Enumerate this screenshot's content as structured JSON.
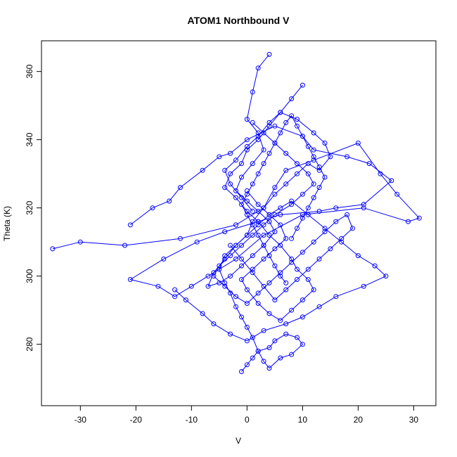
{
  "chart_data": {
    "type": "line",
    "title": "ATOM1 Northbound V",
    "xlabel": "V",
    "ylabel": "Theta (K)",
    "xlim": [
      -37,
      34
    ],
    "ylim": [
      262,
      369
    ],
    "x_ticks": [
      -30,
      -20,
      -10,
      0,
      10,
      20,
      30
    ],
    "y_ticks": [
      280,
      300,
      320,
      340,
      360
    ],
    "grid": false,
    "legend": "none",
    "color": "#0000ff",
    "marker": "open-circle",
    "series": [
      {
        "x": [
          -35,
          -30,
          -22,
          -12,
          -2,
          3,
          5,
          7,
          12,
          20,
          24,
          27,
          31,
          29,
          21,
          10,
          3,
          -2,
          -7,
          -10,
          -13,
          -16,
          -21,
          -15,
          -9,
          -4,
          2,
          6,
          13,
          16,
          21,
          26,
          22,
          18,
          12,
          10,
          5,
          0,
          -3,
          -5,
          -8,
          -12,
          -14,
          -17,
          -21
        ],
        "y": [
          308,
          310,
          309,
          311,
          315,
          320,
          326,
          331,
          334,
          339,
          330,
          324,
          317,
          316,
          320,
          318,
          312,
          305,
          300,
          297,
          294,
          297,
          299,
          305,
          310,
          313,
          316,
          318,
          319,
          320,
          321,
          328,
          333,
          335,
          337,
          341,
          344,
          340,
          336,
          335,
          331,
          326,
          322,
          320,
          315
        ]
      },
      {
        "x": [
          -1,
          0,
          1,
          2,
          4,
          5,
          7,
          9,
          10,
          8,
          6,
          4,
          3,
          2,
          1,
          0,
          -1,
          -2,
          -3,
          -4,
          -5,
          -4,
          -2,
          0,
          2,
          4,
          6,
          8,
          11,
          14,
          17,
          20,
          23,
          25,
          21,
          16,
          13,
          10,
          7,
          3,
          0,
          -3,
          -6,
          -8,
          -11,
          -13
        ],
        "y": [
          272,
          274,
          276,
          278,
          279,
          281,
          283,
          282,
          280,
          277,
          276,
          273,
          275,
          278,
          282,
          285,
          288,
          291,
          295,
          298,
          302,
          306,
          309,
          312,
          315,
          318,
          320,
          322,
          318,
          314,
          310,
          306,
          303,
          300,
          297,
          294,
          291,
          288,
          286,
          284,
          281,
          283,
          286,
          289,
          293,
          296
        ]
      },
      {
        "x": [
          4,
          2,
          1,
          0,
          2,
          3,
          1,
          -1,
          -2,
          0,
          2,
          4,
          5,
          3,
          1,
          -1,
          -3,
          -5,
          -7,
          -6,
          -4,
          -2,
          0,
          1,
          3,
          5,
          7,
          9,
          11,
          13,
          15,
          14,
          12,
          9,
          6,
          4,
          2,
          0,
          -2,
          -4,
          -3,
          -1,
          1
        ],
        "y": [
          365,
          361,
          354,
          346,
          342,
          337,
          333,
          329,
          325,
          322,
          319,
          316,
          313,
          309,
          306,
          303,
          300,
          298,
          297,
          301,
          305,
          309,
          312,
          316,
          320,
          324,
          327,
          330,
          333,
          331,
          335,
          339,
          342,
          346,
          348,
          345,
          341,
          338,
          334,
          331,
          327,
          323,
          319
        ]
      },
      {
        "x": [
          10,
          8,
          6,
          4,
          2,
          0,
          -1,
          -3,
          -4,
          -2,
          0,
          2,
          4,
          6,
          8,
          9,
          11,
          12,
          10,
          8,
          6,
          4,
          2,
          0,
          -1,
          1,
          3,
          5,
          7,
          6,
          4,
          2,
          0
        ],
        "y": [
          356,
          352,
          348,
          344,
          340,
          337,
          333,
          330,
          326,
          323,
          319,
          316,
          312,
          309,
          305,
          302,
          299,
          296,
          293,
          290,
          287,
          289,
          292,
          296,
          299,
          302,
          305,
          308,
          311,
          315,
          318,
          321,
          325
        ]
      },
      {
        "x": [
          1,
          3,
          5,
          7,
          9,
          11,
          12,
          10,
          8,
          5,
          3,
          1,
          -1,
          -3,
          -5,
          -6,
          -4,
          -2,
          0,
          2,
          4,
          6,
          8,
          10,
          12,
          14,
          16,
          18,
          19,
          17,
          15,
          13,
          11,
          9,
          7,
          5,
          3,
          1,
          -1,
          -3
        ],
        "y": [
          345,
          342,
          339,
          336,
          333,
          330,
          327,
          324,
          321,
          318,
          315,
          312,
          309,
          306,
          303,
          300,
          297,
          294,
          292,
          295,
          298,
          301,
          304,
          307,
          310,
          313,
          316,
          318,
          314,
          311,
          308,
          305,
          302,
          299,
          296,
          293,
          297,
          301,
          305,
          309
        ]
      },
      {
        "x": [
          7,
          6,
          5,
          4,
          3,
          2,
          1,
          0,
          -1,
          0,
          1,
          2,
          3,
          4,
          5,
          6,
          7,
          8,
          9,
          10,
          11,
          12,
          13,
          14,
          13,
          12,
          11,
          10,
          9,
          8
        ],
        "y": [
          298,
          300,
          303,
          306,
          309,
          312,
          315,
          318,
          321,
          324,
          327,
          330,
          333,
          336,
          339,
          342,
          345,
          347,
          344,
          341,
          338,
          335,
          332,
          329,
          326,
          323,
          320,
          317,
          314,
          311
        ]
      }
    ]
  }
}
